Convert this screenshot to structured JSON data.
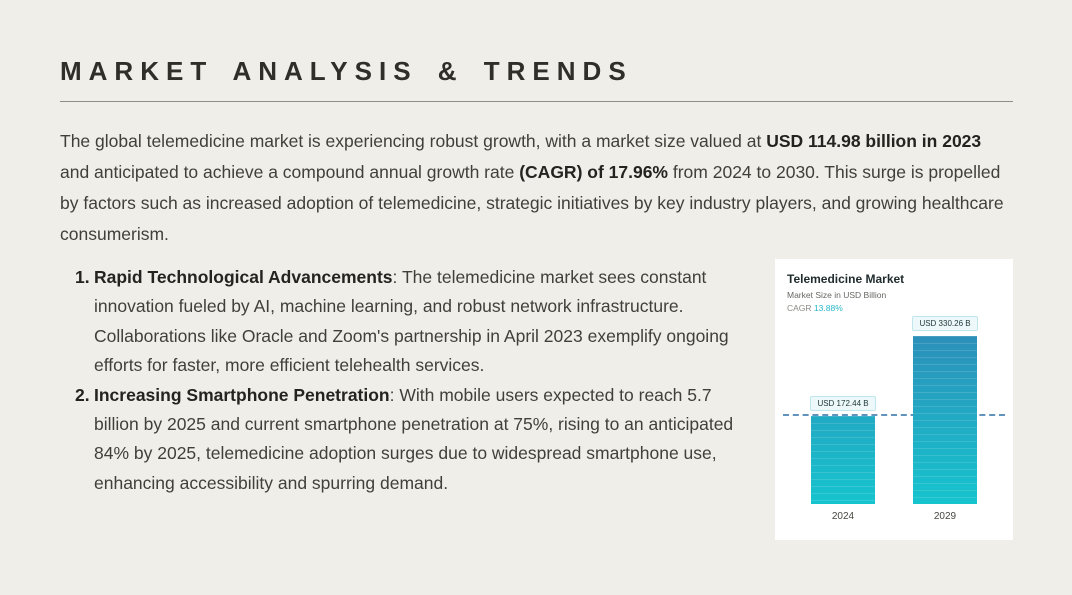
{
  "slide": {
    "title": "MARKET ANALYSIS & TRENDS"
  },
  "intro": {
    "p1": "The global telemedicine market is experiencing robust growth, with a market size valued at ",
    "b1": "USD 114.98 billion in 2023",
    "p2": " and anticipated to achieve a compound annual growth rate ",
    "b2": "(CAGR) of 17.96%",
    "p3": " from 2024 to 2030. This surge is propelled by factors such as increased adoption of telemedicine, strategic initiatives by key industry players, and growing healthcare consumerism."
  },
  "list": {
    "items": [
      {
        "number": "1.",
        "title": "Rapid Technological Advancements",
        "body": ": The telemedicine market sees constant innovation fueled by AI, machine learning, and robust network infrastructure. Collaborations like Oracle and Zoom's partnership in April 2023 exemplify ongoing efforts for faster, more efficient telehealth services."
      },
      {
        "number": "2.",
        "title": "Increasing Smartphone Penetration",
        "body": ": With mobile users expected to reach 5.7 billion by 2025 and current smartphone penetration at 75%, rising to an anticipated 84% by 2025, telemedicine adoption surges due to widespread smartphone use, enhancing accessibility and spurring demand."
      }
    ]
  },
  "chart_card": {
    "title": "Telemedicine Market",
    "subtitle": "Market Size in USD Billion",
    "cagr_label": "CAGR",
    "cagr_value": "13.88%"
  },
  "chart_data": {
    "type": "bar",
    "title": "Telemedicine Market",
    "ylabel": "Market Size in USD Billion",
    "categories": [
      "2024",
      "2029"
    ],
    "values": [
      172.44,
      330.26
    ],
    "value_labels": [
      "USD 172.44 B",
      "USD 330.26 B"
    ],
    "ylim": [
      0,
      360
    ],
    "annotations": [
      "CAGR 13.88%"
    ],
    "reference_line": {
      "value": 172.44,
      "style": "dashed"
    },
    "legend": false,
    "grid": false,
    "bar_color_top": "#2e8cb8",
    "bar_color_bottom": "#16c4ce"
  },
  "colors": {
    "background": "#f0eee8",
    "heading": "#2f2e29",
    "body_text": "#413f39",
    "accent_teal": "#29b7c6",
    "reference_line": "#6193bd",
    "card_background": "#ffffff"
  }
}
